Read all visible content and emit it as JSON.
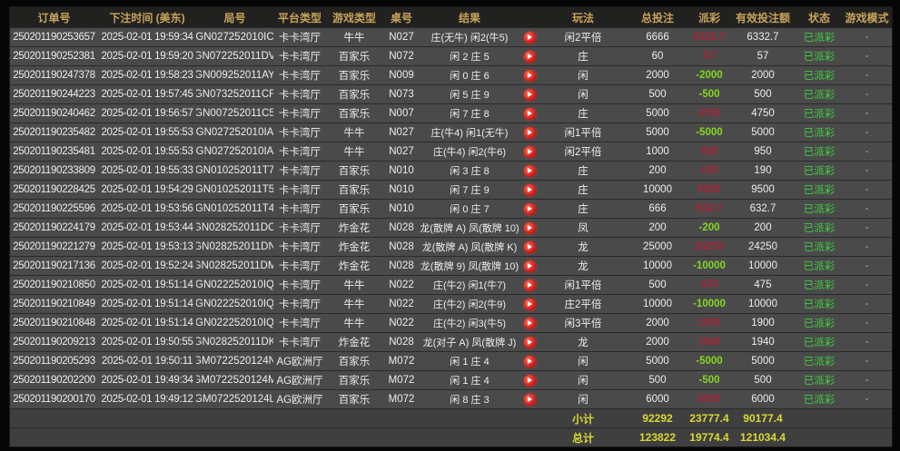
{
  "colors": {
    "header_gold": "#c9a35a",
    "win_red": "#a32638",
    "loss_green": "#85d622",
    "status_green": "#42cd42",
    "total_yellow": "#d9d935",
    "replay_red": "#d11414"
  },
  "table": {
    "columns": [
      {
        "key": "order_id",
        "label": "订单号"
      },
      {
        "key": "bet_time",
        "label": "下注时间 (美东)"
      },
      {
        "key": "round_id",
        "label": "局号"
      },
      {
        "key": "platform",
        "label": "平台类型"
      },
      {
        "key": "game_type",
        "label": "游戏类型"
      },
      {
        "key": "table_no",
        "label": "桌号"
      },
      {
        "key": "result",
        "label": "结果"
      },
      {
        "key": "replay",
        "label": ""
      },
      {
        "key": "play",
        "label": "玩法"
      },
      {
        "key": "total_bet",
        "label": "总投注"
      },
      {
        "key": "payout",
        "label": "派彩"
      },
      {
        "key": "valid_bet",
        "label": "有效投注额"
      },
      {
        "key": "status",
        "label": "状态"
      },
      {
        "key": "game_mode",
        "label": "游戏模式"
      }
    ],
    "rows": [
      {
        "order_id": "250201190253657",
        "bet_time": "2025-02-01 19:59:34",
        "round_id": "GN027252010IC",
        "platform": "卡卡湾厅",
        "game_type": "牛牛",
        "table_no": "N027",
        "result": "庄(无牛) 闲2(牛5)",
        "play": "闲2平倍",
        "total_bet": "6666",
        "payout": "6332.7",
        "valid_bet": "6332.7",
        "status": "已派彩",
        "game_mode": "-"
      },
      {
        "order_id": "250201190252381",
        "bet_time": "2025-02-01 19:59:20",
        "round_id": "GN072252011DV",
        "platform": "卡卡湾厅",
        "game_type": "百家乐",
        "table_no": "N072",
        "result": "闲 2 庄 5",
        "play": "庄",
        "total_bet": "60",
        "payout": "57",
        "valid_bet": "57",
        "status": "已派彩",
        "game_mode": "-"
      },
      {
        "order_id": "250201190247378",
        "bet_time": "2025-02-01 19:58:23",
        "round_id": "GN009252011AY",
        "platform": "卡卡湾厅",
        "game_type": "百家乐",
        "table_no": "N009",
        "result": "闲 0 庄 6",
        "play": "闲",
        "total_bet": "2000",
        "payout": "-2000",
        "valid_bet": "2000",
        "status": "已派彩",
        "game_mode": "-"
      },
      {
        "order_id": "250201190244223",
        "bet_time": "2025-02-01 19:57:45",
        "round_id": "GN073252011CF",
        "platform": "卡卡湾厅",
        "game_type": "百家乐",
        "table_no": "N073",
        "result": "闲 5 庄 9",
        "play": "闲",
        "total_bet": "500",
        "payout": "-500",
        "valid_bet": "500",
        "status": "已派彩",
        "game_mode": "-"
      },
      {
        "order_id": "250201190240462",
        "bet_time": "2025-02-01 19:56:57",
        "round_id": "GN007252011C5",
        "platform": "卡卡湾厅",
        "game_type": "百家乐",
        "table_no": "N007",
        "result": "闲 7 庄 8",
        "play": "庄",
        "total_bet": "5000",
        "payout": "4750",
        "valid_bet": "4750",
        "status": "已派彩",
        "game_mode": "-"
      },
      {
        "order_id": "250201190235482",
        "bet_time": "2025-02-01 19:55:53",
        "round_id": "GN027252010IA",
        "platform": "卡卡湾厅",
        "game_type": "牛牛",
        "table_no": "N027",
        "result": "庄(牛4) 闲1(无牛)",
        "play": "闲1平倍",
        "total_bet": "5000",
        "payout": "-5000",
        "valid_bet": "5000",
        "status": "已派彩",
        "game_mode": "-"
      },
      {
        "order_id": "250201190235481",
        "bet_time": "2025-02-01 19:55:53",
        "round_id": "GN027252010IA",
        "platform": "卡卡湾厅",
        "game_type": "牛牛",
        "table_no": "N027",
        "result": "庄(牛4) 闲2(牛6)",
        "play": "闲2平倍",
        "total_bet": "1000",
        "payout": "950",
        "valid_bet": "950",
        "status": "已派彩",
        "game_mode": "-"
      },
      {
        "order_id": "250201190233809",
        "bet_time": "2025-02-01 19:55:33",
        "round_id": "GN010252011T7",
        "platform": "卡卡湾厅",
        "game_type": "百家乐",
        "table_no": "N010",
        "result": "闲 3 庄 8",
        "play": "庄",
        "total_bet": "200",
        "payout": "190",
        "valid_bet": "190",
        "status": "已派彩",
        "game_mode": "-"
      },
      {
        "order_id": "250201190228425",
        "bet_time": "2025-02-01 19:54:29",
        "round_id": "GN010252011T5",
        "platform": "卡卡湾厅",
        "game_type": "百家乐",
        "table_no": "N010",
        "result": "闲 7 庄 9",
        "play": "庄",
        "total_bet": "10000",
        "payout": "9500",
        "valid_bet": "9500",
        "status": "已派彩",
        "game_mode": "-"
      },
      {
        "order_id": "250201190225596",
        "bet_time": "2025-02-01 19:53:56",
        "round_id": "GN010252011T4",
        "platform": "卡卡湾厅",
        "game_type": "百家乐",
        "table_no": "N010",
        "result": "闲 0 庄 7",
        "play": "庄",
        "total_bet": "666",
        "payout": "632.7",
        "valid_bet": "632.7",
        "status": "已派彩",
        "game_mode": "-"
      },
      {
        "order_id": "250201190224179",
        "bet_time": "2025-02-01 19:53:44",
        "round_id": "GN028252011DO",
        "platform": "卡卡湾厅",
        "game_type": "炸金花",
        "table_no": "N028",
        "result": "龙(散牌 A) 凤(散牌 10)",
        "play": "凤",
        "total_bet": "200",
        "payout": "-200",
        "valid_bet": "200",
        "status": "已派彩",
        "game_mode": "-"
      },
      {
        "order_id": "250201190221279",
        "bet_time": "2025-02-01 19:53:13",
        "round_id": "GN028252011DN",
        "platform": "卡卡湾厅",
        "game_type": "炸金花",
        "table_no": "N028",
        "result": "龙(散牌 A) 凤(散牌 K)",
        "play": "龙",
        "total_bet": "25000",
        "payout": "24250",
        "valid_bet": "24250",
        "status": "已派彩",
        "game_mode": "-"
      },
      {
        "order_id": "250201190217136",
        "bet_time": "2025-02-01 19:52:24",
        "round_id": "GN028252011DM",
        "platform": "卡卡湾厅",
        "game_type": "炸金花",
        "table_no": "N028",
        "result": "龙(散牌 9) 凤(散牌 10)",
        "play": "龙",
        "total_bet": "10000",
        "payout": "-10000",
        "valid_bet": "10000",
        "status": "已派彩",
        "game_mode": "-"
      },
      {
        "order_id": "250201190210850",
        "bet_time": "2025-02-01 19:51:14",
        "round_id": "GN022252010IQ",
        "platform": "卡卡湾厅",
        "game_type": "牛牛",
        "table_no": "N022",
        "result": "庄(牛2) 闲1(牛7)",
        "play": "闲1平倍",
        "total_bet": "500",
        "payout": "475",
        "valid_bet": "475",
        "status": "已派彩",
        "game_mode": "-"
      },
      {
        "order_id": "250201190210849",
        "bet_time": "2025-02-01 19:51:14",
        "round_id": "GN022252010IQ",
        "platform": "卡卡湾厅",
        "game_type": "牛牛",
        "table_no": "N022",
        "result": "庄(牛2) 闲2(牛9)",
        "play": "庄2平倍",
        "total_bet": "10000",
        "payout": "-10000",
        "valid_bet": "10000",
        "status": "已派彩",
        "game_mode": "-"
      },
      {
        "order_id": "250201190210848",
        "bet_time": "2025-02-01 19:51:14",
        "round_id": "GN022252010IQ",
        "platform": "卡卡湾厅",
        "game_type": "牛牛",
        "table_no": "N022",
        "result": "庄(牛2) 闲3(牛5)",
        "play": "闲3平倍",
        "total_bet": "2000",
        "payout": "1900",
        "valid_bet": "1900",
        "status": "已派彩",
        "game_mode": "-"
      },
      {
        "order_id": "250201190209213",
        "bet_time": "2025-02-01 19:50:55",
        "round_id": "GN028252011DK",
        "platform": "卡卡湾厅",
        "game_type": "炸金花",
        "table_no": "N028",
        "result": "龙(对子 A) 凤(散牌 J)",
        "play": "龙",
        "total_bet": "2000",
        "payout": "1940",
        "valid_bet": "1940",
        "status": "已派彩",
        "game_mode": "-"
      },
      {
        "order_id": "250201190205293",
        "bet_time": "2025-02-01 19:50:11",
        "round_id": "GM0722520124N",
        "platform": "AG欧洲厅",
        "game_type": "百家乐",
        "table_no": "M072",
        "result": "闲 1 庄 4",
        "play": "闲",
        "total_bet": "5000",
        "payout": "-5000",
        "valid_bet": "5000",
        "status": "已派彩",
        "game_mode": "-"
      },
      {
        "order_id": "250201190202200",
        "bet_time": "2025-02-01 19:49:34",
        "round_id": "GM0722520124M",
        "platform": "AG欧洲厅",
        "game_type": "百家乐",
        "table_no": "M072",
        "result": "闲 1 庄 4",
        "play": "闲",
        "total_bet": "500",
        "payout": "-500",
        "valid_bet": "500",
        "status": "已派彩",
        "game_mode": "-"
      },
      {
        "order_id": "250201190200170",
        "bet_time": "2025-02-01 19:49:12",
        "round_id": "GM0722520124L",
        "platform": "AG欧洲厅",
        "game_type": "百家乐",
        "table_no": "M072",
        "result": "闲 8 庄 3",
        "play": "闲",
        "total_bet": "6000",
        "payout": "6000",
        "valid_bet": "6000",
        "status": "已派彩",
        "game_mode": "-"
      }
    ],
    "subtotal": {
      "label": "小计",
      "total_bet": "92292",
      "payout": "23777.4",
      "valid_bet": "90177.4"
    },
    "grand_total": {
      "label": "总计",
      "total_bet": "123822",
      "payout": "19774.4",
      "valid_bet": "121034.4"
    }
  }
}
